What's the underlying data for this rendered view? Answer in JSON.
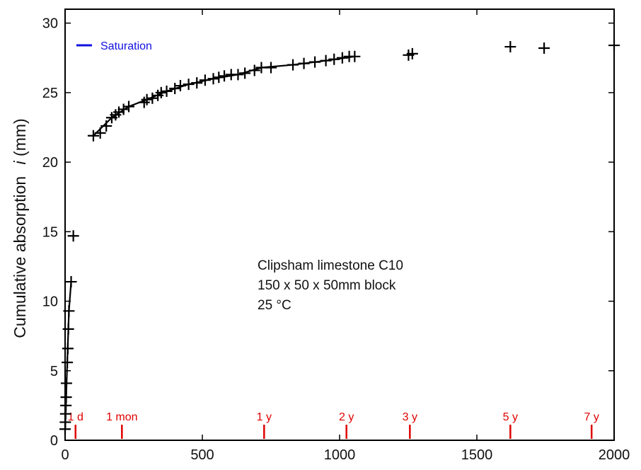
{
  "chart_data": {
    "type": "scatter",
    "xlim": [
      0,
      2000
    ],
    "ylim": [
      0,
      31
    ],
    "x_ticks": [
      0,
      500,
      1000,
      1500,
      2000
    ],
    "y_ticks": [
      0,
      5,
      10,
      15,
      20,
      25,
      30
    ],
    "ylabel_main": "Cumulative absorption",
    "ylabel_var": "i",
    "ylabel_unit": " (mm)",
    "legend": {
      "label": "Saturation",
      "color": "#1010e0",
      "placement": "top-left"
    },
    "annotation": [
      "Clipsham limestone C10",
      "150 x 50 x 50mm block",
      "25 °C"
    ],
    "time_markers": {
      "color": "#e00000",
      "items": [
        {
          "x": 38,
          "label": "1 d"
        },
        {
          "x": 207,
          "label": "1 mon"
        },
        {
          "x": 725,
          "label": "1 y"
        },
        {
          "x": 1025,
          "label": "2 y"
        },
        {
          "x": 1256,
          "label": "3 y"
        },
        {
          "x": 1622,
          "label": "5 y"
        },
        {
          "x": 1918,
          "label": "7 y"
        }
      ]
    },
    "series": [
      {
        "marker": "+",
        "color": "#000000",
        "points": [
          [
            0,
            0.8
          ],
          [
            1,
            1.3
          ],
          [
            2,
            1.9
          ],
          [
            3,
            2.5
          ],
          [
            4,
            3.1
          ],
          [
            5,
            4.1
          ],
          [
            8,
            5.6
          ],
          [
            10,
            6.6
          ],
          [
            12,
            8.0
          ],
          [
            14,
            9.3
          ],
          [
            22,
            11.4
          ],
          [
            30,
            14.7
          ],
          [
            103,
            21.9
          ],
          [
            128,
            22.1
          ],
          [
            150,
            22.6
          ],
          [
            170,
            23.2
          ],
          [
            184,
            23.4
          ],
          [
            196,
            23.6
          ],
          [
            213,
            23.8
          ],
          [
            232,
            24.0
          ],
          [
            288,
            24.3
          ],
          [
            298,
            24.5
          ],
          [
            318,
            24.6
          ],
          [
            338,
            24.8
          ],
          [
            350,
            25.0
          ],
          [
            370,
            25.1
          ],
          [
            400,
            25.3
          ],
          [
            420,
            25.5
          ],
          [
            450,
            25.6
          ],
          [
            480,
            25.7
          ],
          [
            510,
            25.9
          ],
          [
            540,
            26.0
          ],
          [
            560,
            26.1
          ],
          [
            580,
            26.2
          ],
          [
            605,
            26.3
          ],
          [
            630,
            26.3
          ],
          [
            655,
            26.4
          ],
          [
            690,
            26.6
          ],
          [
            715,
            26.8
          ],
          [
            750,
            26.8
          ],
          [
            830,
            27.0
          ],
          [
            870,
            27.1
          ],
          [
            910,
            27.2
          ],
          [
            950,
            27.3
          ],
          [
            980,
            27.4
          ],
          [
            1010,
            27.5
          ],
          [
            1035,
            27.6
          ],
          [
            1055,
            27.6
          ],
          [
            1251,
            27.7
          ],
          [
            1265,
            27.8
          ],
          [
            1622,
            28.3
          ],
          [
            1745,
            28.2
          ],
          [
            2000,
            28.4
          ]
        ]
      }
    ],
    "fit_lines": [
      {
        "color": "#000000",
        "points": [
          [
            0,
            0.8
          ],
          [
            14,
            9.3
          ],
          [
            22,
            11.4
          ]
        ]
      },
      {
        "color": "#000000",
        "points": [
          [
            103,
            21.9
          ],
          [
            170,
            23.2
          ],
          [
            232,
            24.0
          ],
          [
            298,
            24.5
          ],
          [
            370,
            25.1
          ],
          [
            450,
            25.6
          ],
          [
            540,
            26.0
          ],
          [
            630,
            26.3
          ],
          [
            715,
            26.8
          ],
          [
            830,
            27.0
          ],
          [
            950,
            27.3
          ],
          [
            1055,
            27.6
          ]
        ]
      }
    ]
  }
}
